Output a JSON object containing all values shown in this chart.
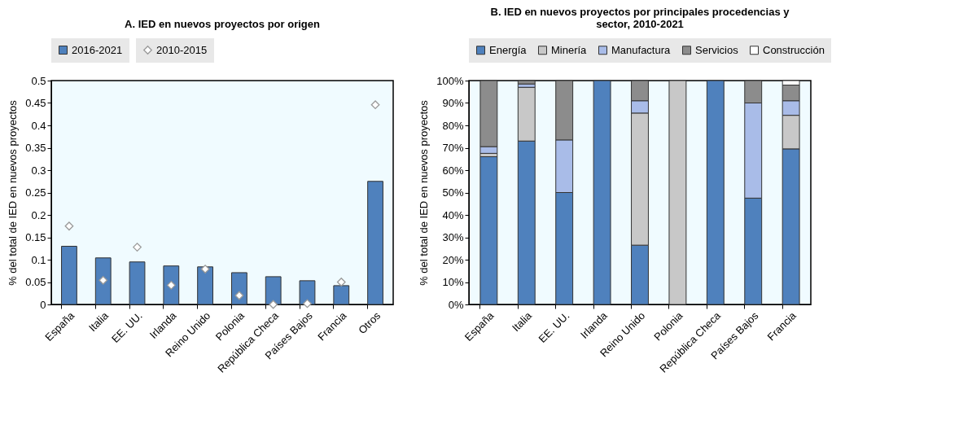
{
  "chart_data": [
    {
      "type": "bar",
      "title": "A. IED en nuevos proyectos por origen",
      "ylabel": "% del total de IED en nuevos proyectos",
      "categories": [
        "España",
        "Italia",
        "EE. UU.",
        "Irlanda",
        "Reino Unido",
        "Polonia",
        "República Checa",
        "Países Bajos",
        "Francia",
        "Otros"
      ],
      "series": [
        {
          "name": "2016-2021",
          "color": "#4f81bd",
          "values": [
            0.13,
            0.104,
            0.095,
            0.086,
            0.084,
            0.071,
            0.062,
            0.053,
            0.042,
            0.275
          ]
        },
        {
          "name": "2010-2015",
          "type": "scatter",
          "marker": "diamond",
          "color": "#999999",
          "values": [
            0.175,
            0.054,
            0.128,
            0.043,
            0.079,
            0.02,
            0.0,
            0.002,
            0.05,
            0.446
          ]
        }
      ],
      "ylim": [
        0,
        0.5
      ],
      "yticks": [
        0,
        0.05,
        0.1,
        0.15,
        0.2,
        0.25,
        0.3,
        0.35,
        0.4,
        0.45,
        0.5
      ],
      "legend": "top"
    },
    {
      "type": "bar",
      "stacked": true,
      "title": "B. IED en nuevos proyectos por principales procedencias y sector, 2010-2021",
      "ylabel": "% del total de IED en nuevos proyectos",
      "categories": [
        "España",
        "Italia",
        "EE. UU.",
        "Irlanda",
        "Reino Unido",
        "Polonia",
        "República Checa",
        "Países Bajos",
        "Francia"
      ],
      "series": [
        {
          "name": "Energía",
          "color": "#4f81bd",
          "values": [
            66,
            73,
            50,
            100,
            26.5,
            0,
            100,
            47.5,
            69.5
          ]
        },
        {
          "name": "Minería",
          "color": "#c8c8c8",
          "values": [
            1.5,
            24,
            0,
            0,
            59,
            100,
            0,
            0,
            15
          ]
        },
        {
          "name": "Manufactura",
          "color": "#a9bce8",
          "values": [
            3,
            1.5,
            23.5,
            0,
            5.5,
            0,
            0,
            42.5,
            6.5
          ]
        },
        {
          "name": "Servicios",
          "color": "#8c8c8c",
          "values": [
            29.5,
            1.5,
            26.5,
            0,
            9,
            0,
            0,
            10,
            7
          ]
        },
        {
          "name": "Construcción",
          "color": "#ffffff",
          "values": [
            0,
            0,
            0,
            0,
            0,
            0,
            0,
            0,
            2
          ]
        }
      ],
      "ylim": [
        0,
        100
      ],
      "yticks": [
        {
          "value": 0,
          "label": "0%"
        },
        {
          "value": 10,
          "label": "10%"
        },
        {
          "value": 20,
          "label": "20%"
        },
        {
          "value": 30,
          "label": "30%"
        },
        {
          "value": 40,
          "label": "40%"
        },
        {
          "value": 50,
          "label": "50%"
        },
        {
          "value": 60,
          "label": "60%"
        },
        {
          "value": 70,
          "label": "70%"
        },
        {
          "value": 80,
          "label": "80%"
        },
        {
          "value": 90,
          "label": "90%"
        },
        {
          "value": 100,
          "label": "100%"
        }
      ],
      "legend": "top"
    }
  ]
}
